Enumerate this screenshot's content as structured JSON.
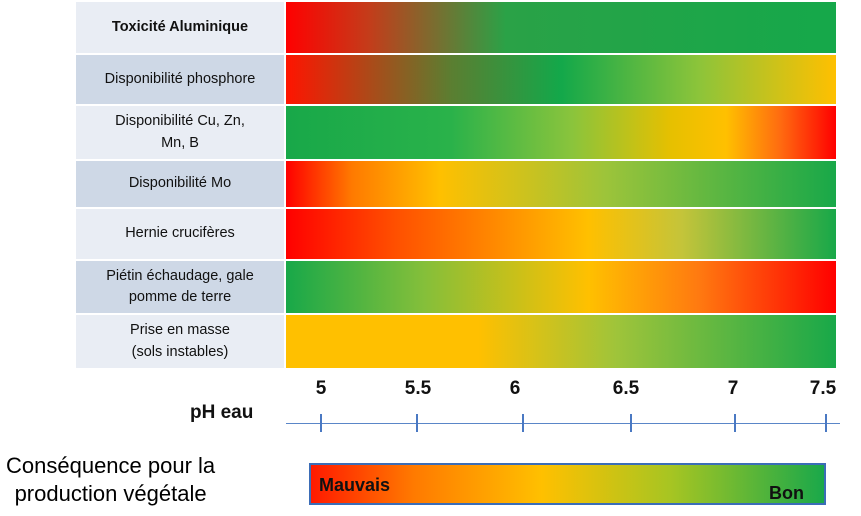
{
  "rows": [
    {
      "label": "Toxicité Aluminique",
      "gradient": "linear-gradient(90deg,#ff0000 0%,#c43c1a 15%,#2aa247 40%,#15a84a 100%)"
    },
    {
      "label": "Disponibilité phosphore",
      "gradient": "linear-gradient(90deg,#ff1400 0%,#5b7e31 30%,#13a84a 50%,#8cc43a 75%,#ffc000 100%)"
    },
    {
      "label": "Disponibilité Cu, Zn,\nMn, B",
      "gradient": "linear-gradient(90deg,#18a849 0%,#2ab24a 30%,#8ac43c 52%,#e6c000 70%,#ffc000 80%,#ff6a10 90%,#ff0000 100%)"
    },
    {
      "label": "Disponibilité Mo",
      "gradient": "linear-gradient(90deg,#ff0000 0%,#ff7a00 12%,#ffc000 28%,#9dc43a 58%,#18a849 100%)"
    },
    {
      "label": "Hernie crucifères",
      "gradient": "linear-gradient(90deg,#ff0000 0%,#ff5000 20%,#ffc000 55%,#c4c43a 72%,#18a849 100%)"
    },
    {
      "label": "Piétin échaudage, gale\npomme de terre",
      "gradient": "linear-gradient(90deg,#18a849 0%,#84bf3a 25%,#ffc000 55%,#ff7a10 75%,#ff0000 100%)"
    },
    {
      "label": "Prise en masse\n(sols instables)",
      "gradient": "linear-gradient(90deg,#ffc000 0%,#ffc000 35%,#9fc43a 60%,#18a849 100%)"
    }
  ],
  "axis": {
    "label": "pH eau",
    "ticks": [
      "5",
      "5.5",
      "6",
      "6.5",
      "7",
      "7.5"
    ]
  },
  "legend": {
    "title": "Conséquence pour la\nproduction végétale",
    "bad": "Mauvais",
    "good": "Bon"
  }
}
